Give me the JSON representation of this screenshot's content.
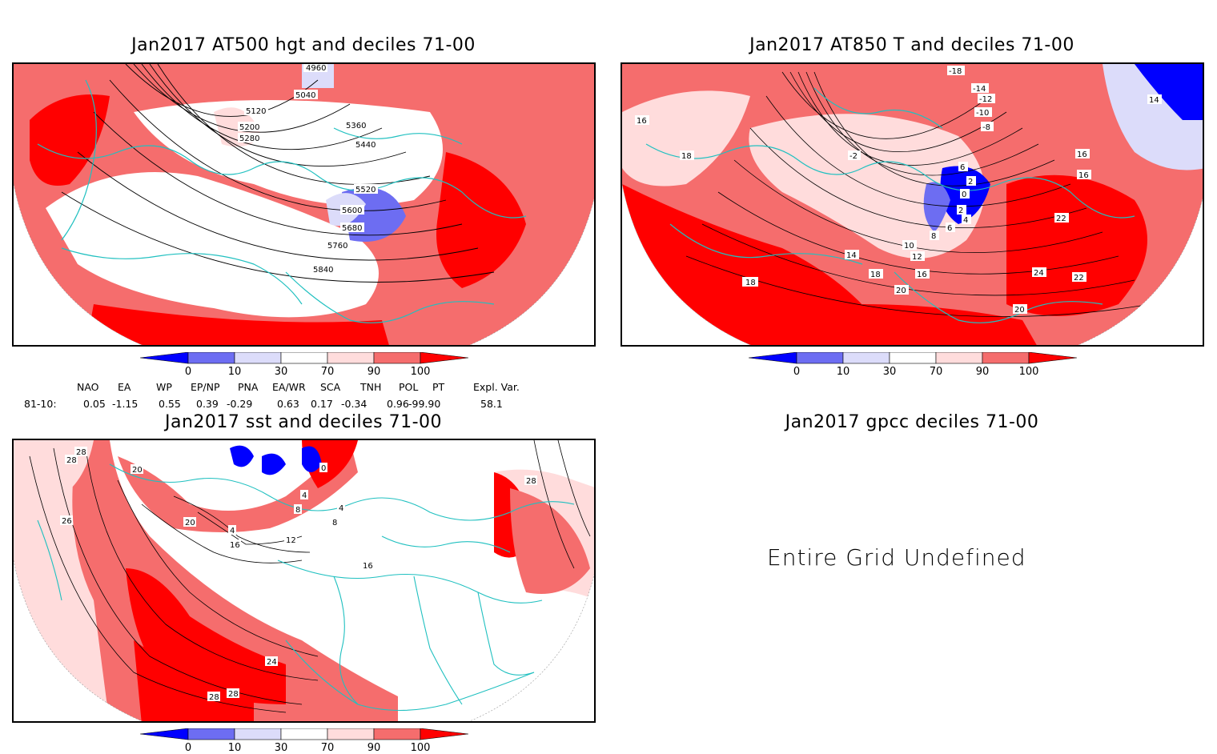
{
  "panels": [
    {
      "id": "at500",
      "title": "Jan2017 AT500 hgt and deciles 71-00",
      "contour_labels": [
        "4960",
        "5040",
        "5120",
        "5200",
        "5280",
        "5360",
        "5440",
        "5520",
        "5600",
        "5680",
        "5760",
        "5840"
      ]
    },
    {
      "id": "at850",
      "title": "Jan2017 AT850 T and deciles 71-00",
      "contour_labels": [
        "-18",
        "-14",
        "-12",
        "-10",
        "-8",
        "-2",
        "6",
        "2",
        "0",
        "2",
        "4",
        "6",
        "8",
        "10",
        "12",
        "14",
        "16",
        "18",
        "18",
        "20",
        "20",
        "22",
        "22",
        "24",
        "16",
        "16",
        "14",
        "16",
        "18",
        "18"
      ]
    },
    {
      "id": "sst",
      "title": "Jan2017 sst and deciles 71-00",
      "contour_labels": [
        "28",
        "28",
        "20",
        "26",
        "20",
        "16",
        "4",
        "8",
        "4",
        "12",
        "16",
        "24",
        "28",
        "28",
        "28",
        "0",
        "4",
        "8"
      ]
    },
    {
      "id": "gpcc",
      "title": "Jan2017 gpcc deciles 71-00",
      "message": "Entire Grid Undefined"
    }
  ],
  "colorbar": {
    "ticks": [
      "0",
      "10",
      "30",
      "70",
      "90",
      "100"
    ],
    "colors": [
      "#0000ff",
      "#6d6df2",
      "#dcdcfa",
      "#ffffff",
      "#ffdcdc",
      "#f56d6d",
      "#ff0000"
    ]
  },
  "indices": {
    "headers": [
      "NAO",
      "EA",
      "WP",
      "EP/NP",
      "PNA",
      "EA/WR",
      "SCA",
      "TNH",
      "POL",
      "PT",
      "Expl. Var."
    ],
    "row_label": "81-10:",
    "values": [
      "0.05",
      "-1.15",
      "0.55",
      "0.39",
      "-0.29",
      "0.63",
      "0.17",
      "-0.34",
      "0.96",
      "-99.90",
      "58.1"
    ]
  }
}
